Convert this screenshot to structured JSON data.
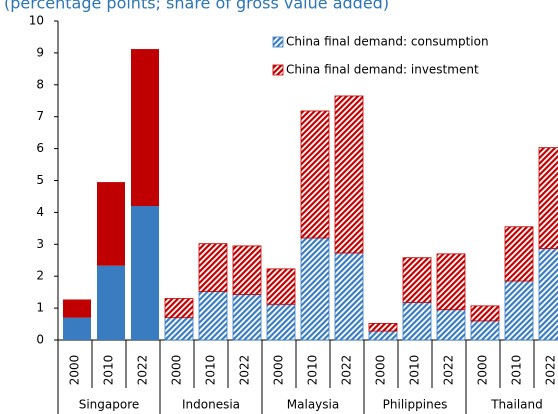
{
  "chart_data": {
    "type": "stacked_bar",
    "subtitle": "(percentage points; share of gross value added)",
    "groups": [
      {
        "name": "Singapore",
        "categories": [
          "2000",
          "2010",
          "2022"
        ]
      },
      {
        "name": "Indonesia",
        "categories": [
          "2000",
          "2010",
          "2022"
        ]
      },
      {
        "name": "Malaysia",
        "categories": [
          "2000",
          "2010",
          "2022"
        ]
      },
      {
        "name": "Philippines",
        "categories": [
          "2000",
          "2010",
          "2022"
        ]
      },
      {
        "name": "Thailand",
        "categories": [
          "2000",
          "2010",
          "2022"
        ]
      }
    ],
    "hatched": [
      false,
      false,
      false,
      true,
      true,
      true,
      true,
      true,
      true,
      true,
      true,
      true,
      true,
      true,
      true
    ],
    "series": [
      {
        "name": "China final demand: consumption",
        "color": "#3a7cc0",
        "values": [
          0.7,
          2.33,
          4.2,
          0.7,
          1.52,
          1.43,
          1.12,
          3.2,
          2.73,
          0.28,
          1.18,
          0.95,
          0.6,
          1.85,
          2.87
        ]
      },
      {
        "name": "China final demand: investment",
        "color": "#c00000",
        "values": [
          0.57,
          2.62,
          4.92,
          0.6,
          1.5,
          1.52,
          1.11,
          3.98,
          4.92,
          0.24,
          1.4,
          1.75,
          0.47,
          1.7,
          3.16
        ]
      }
    ],
    "ylim": [
      0,
      10
    ],
    "yticks": [
      0,
      1,
      2,
      3,
      4,
      5,
      6,
      7,
      8,
      9,
      10
    ],
    "grid": false,
    "legend": "top-right"
  }
}
